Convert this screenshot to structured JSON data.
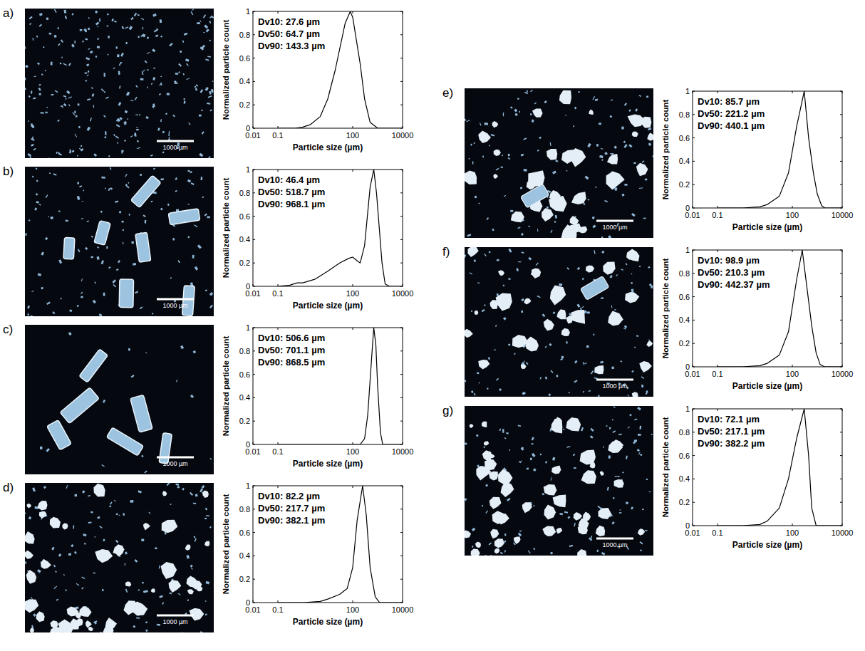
{
  "chart_data": [
    {
      "type": "line",
      "panel": "a)",
      "log": "x",
      "color": "#000000",
      "x": [
        0.1,
        0.5,
        1,
        2,
        5,
        10,
        20,
        50,
        80,
        100,
        200,
        300,
        500,
        1000,
        10000
      ],
      "values": [
        0,
        0,
        0.01,
        0.03,
        0.1,
        0.25,
        0.5,
        0.9,
        1.0,
        0.95,
        0.55,
        0.25,
        0.05,
        0,
        0
      ],
      "xlim": [
        0.01,
        10000
      ],
      "ylim": [
        0,
        1
      ],
      "xticks": [
        0.01,
        0.1,
        100,
        10000
      ],
      "yticks": [
        0,
        0.2,
        0.4,
        0.6,
        0.8,
        1
      ],
      "x_label": "Particle size (µm)",
      "y_label": "Normalized particle count",
      "annotations": [
        "Dv10: 27.6 µm",
        "Dv50: 64.7 µm",
        "Dv90: 143.3 µm"
      ],
      "scale_bar": "1000 µm"
    },
    {
      "type": "line",
      "panel": "b)",
      "log": "x",
      "color": "#000000",
      "x": [
        0.1,
        0.3,
        0.6,
        1,
        3,
        10,
        30,
        70,
        100,
        150,
        200,
        300,
        500,
        700,
        900,
        1500,
        2000,
        3000,
        10000
      ],
      "values": [
        0,
        0.01,
        0.03,
        0.03,
        0.06,
        0.13,
        0.2,
        0.24,
        0.25,
        0.22,
        0.2,
        0.35,
        0.85,
        1.0,
        0.8,
        0.2,
        0.02,
        0,
        0
      ],
      "xlim": [
        0.01,
        10000
      ],
      "ylim": [
        0,
        1
      ],
      "xticks": [
        0.01,
        0.1,
        100,
        10000
      ],
      "yticks": [
        0,
        0.2,
        0.4,
        0.6,
        0.8,
        1
      ],
      "x_label": "Particle size (µm)",
      "y_label": "Normalized particle count",
      "annotations": [
        "Dv10: 46.4 µm",
        "Dv50: 518.7 µm",
        "Dv90: 968.1 µm"
      ],
      "scale_bar": "1000 µm"
    },
    {
      "type": "line",
      "panel": "c)",
      "log": "x",
      "color": "#000000",
      "x": [
        0.1,
        200,
        300,
        400,
        600,
        700,
        850,
        1000,
        1300,
        1600,
        10000
      ],
      "values": [
        0,
        0,
        0.05,
        0.25,
        0.8,
        1.0,
        0.85,
        0.5,
        0.1,
        0,
        0
      ],
      "xlim": [
        0.01,
        10000
      ],
      "ylim": [
        0,
        1
      ],
      "xticks": [
        0.01,
        0.1,
        100,
        10000
      ],
      "yticks": [
        0,
        0.2,
        0.4,
        0.6,
        0.8,
        1
      ],
      "x_label": "Particle size (µm)",
      "y_label": "Normalized particle count",
      "annotations": [
        "Dv10: 506.6 µm",
        "Dv50: 701.1 µm",
        "Dv90: 868.5 µm"
      ],
      "scale_bar": "1000 µm"
    },
    {
      "type": "line",
      "panel": "d)",
      "log": "x",
      "color": "#000000",
      "x": [
        0.1,
        1,
        5,
        10,
        30,
        60,
        100,
        150,
        250,
        350,
        500,
        800,
        1200,
        10000
      ],
      "values": [
        0,
        0,
        0.01,
        0.03,
        0.07,
        0.12,
        0.3,
        0.7,
        1.0,
        0.75,
        0.3,
        0.05,
        0,
        0
      ],
      "xlim": [
        0.01,
        10000
      ],
      "ylim": [
        0,
        1
      ],
      "xticks": [
        0.01,
        0.1,
        100,
        10000
      ],
      "yticks": [
        0,
        0.2,
        0.4,
        0.6,
        0.8,
        1
      ],
      "x_label": "Particle size (µm)",
      "y_label": "Normalized particle count",
      "annotations": [
        "Dv10: 82.2 µm",
        "Dv50: 217.7 µm",
        "Dv90: 382.1 µm"
      ],
      "scale_bar": "1000 µm"
    },
    {
      "type": "line",
      "panel": "e)",
      "log": "x",
      "color": "#000000",
      "x": [
        0.1,
        1,
        5,
        10,
        30,
        70,
        150,
        300,
        450,
        700,
        1000,
        1500,
        2000,
        10000
      ],
      "values": [
        0,
        0,
        0.01,
        0.03,
        0.1,
        0.3,
        0.7,
        1.0,
        0.6,
        0.3,
        0.12,
        0.02,
        0,
        0
      ],
      "xlim": [
        0.01,
        10000
      ],
      "ylim": [
        0,
        1
      ],
      "xticks": [
        0.01,
        0.1,
        100,
        10000
      ],
      "yticks": [
        0,
        0.2,
        0.4,
        0.6,
        0.8,
        1
      ],
      "x_label": "Particle size (µm)",
      "y_label": "Normalized particle count",
      "annotations": [
        "Dv10: 85.7 µm",
        "Dv50: 221.2 µm",
        "Dv90: 440.1 µm"
      ],
      "scale_bar": "1000 µm"
    },
    {
      "type": "line",
      "panel": "f)",
      "log": "x",
      "color": "#000000",
      "x": [
        0.1,
        1,
        5,
        10,
        30,
        70,
        150,
        250,
        400,
        600,
        900,
        1300,
        2000,
        10000
      ],
      "values": [
        0,
        0,
        0.01,
        0.03,
        0.1,
        0.3,
        0.75,
        1.0,
        0.65,
        0.35,
        0.12,
        0.02,
        0,
        0
      ],
      "xlim": [
        0.01,
        10000
      ],
      "ylim": [
        0,
        1
      ],
      "xticks": [
        0.01,
        0.1,
        100,
        10000
      ],
      "yticks": [
        0,
        0.2,
        0.4,
        0.6,
        0.8,
        1
      ],
      "x_label": "Particle size (µm)",
      "y_label": "Normalized particle count",
      "annotations": [
        "Dv10: 98.9 µm",
        "Dv50: 210.3 µm",
        "Dv90: 442.37 µm"
      ],
      "scale_bar": "1000 µm"
    },
    {
      "type": "line",
      "panel": "g)",
      "log": "x",
      "color": "#000000",
      "x": [
        0.1,
        1,
        5,
        10,
        30,
        70,
        150,
        300,
        450,
        600,
        900,
        10000
      ],
      "values": [
        0,
        0,
        0.01,
        0.04,
        0.15,
        0.4,
        0.75,
        1.0,
        0.6,
        0.15,
        0,
        0
      ],
      "xlim": [
        0.01,
        10000
      ],
      "ylim": [
        0,
        1
      ],
      "xticks": [
        0.01,
        0.1,
        100,
        10000
      ],
      "yticks": [
        0,
        0.2,
        0.4,
        0.6,
        0.8,
        1
      ],
      "x_label": "Particle size (µm)",
      "y_label": "Normalized particle count",
      "annotations": [
        "Dv10: 72.1 µm",
        "Dv50: 217.1 µm",
        "Dv90: 382.2 µm"
      ],
      "scale_bar": "1000 µm"
    }
  ]
}
